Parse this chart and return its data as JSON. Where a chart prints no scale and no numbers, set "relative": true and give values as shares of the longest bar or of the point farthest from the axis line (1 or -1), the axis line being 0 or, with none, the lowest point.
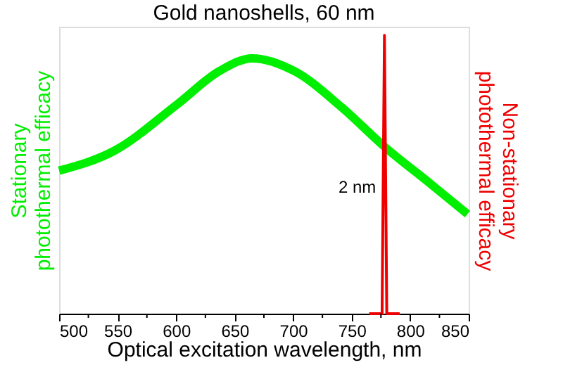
{
  "chart_data": {
    "type": "line",
    "title": "Gold nanoshells, 60 nm",
    "xlabel": "Optical excitation wavelength, nm",
    "ylabel": "Stationary photothermal efficacy",
    "y2label": "Non-stationary photothermal efficacy",
    "relative": true,
    "xlim": [
      500,
      850
    ],
    "xticks": [
      500,
      {
        "value": 525,
        "label": null
      },
      550,
      {
        "value": 575,
        "label": null
      },
      600,
      {
        "value": 625,
        "label": null
      },
      650,
      {
        "value": 675,
        "label": null
      },
      700,
      {
        "value": 725,
        "label": null
      },
      750,
      {
        "value": 775,
        "label": null
      },
      800,
      {
        "value": 825,
        "label": null
      },
      850
    ],
    "series": [
      {
        "color": "#00ee00",
        "x": [
          500,
          548,
          601,
          637,
          665,
          701,
          741,
          779,
          817,
          849
        ],
        "values": [
          0.56,
          0.64,
          0.82,
          0.95,
          1.0,
          0.95,
          0.81,
          0.65,
          0.51,
          0.39
        ]
      },
      {
        "color": "#ee0000",
        "axis": "y2",
        "x": [
          765,
          776,
          778,
          780,
          791
        ],
        "values": [
          0,
          0,
          1,
          0,
          0
        ]
      }
    ],
    "annotations": [
      "2 nm"
    ],
    "tick_labels": "x",
    "grid": false,
    "marker": "none",
    "line_style": "solid"
  }
}
